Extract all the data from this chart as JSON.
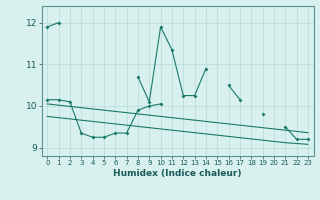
{
  "xlabel": "Humidex (Indice chaleur)",
  "background_color": "#d8f0ee",
  "grid_color": "#b8dbd8",
  "line_color": "#1a7a6a",
  "xlim": [
    -0.5,
    23.5
  ],
  "ylim": [
    8.8,
    12.4
  ],
  "yticks": [
    9,
    10,
    11,
    12
  ],
  "xticks": [
    0,
    1,
    2,
    3,
    4,
    5,
    6,
    7,
    8,
    9,
    10,
    11,
    12,
    13,
    14,
    15,
    16,
    17,
    18,
    19,
    20,
    21,
    22,
    23
  ],
  "series1_y": [
    11.9,
    12.0,
    null,
    null,
    null,
    null,
    null,
    null,
    10.7,
    10.1,
    11.9,
    11.35,
    10.25,
    10.25,
    10.9,
    null,
    10.5,
    10.15,
    null,
    9.8,
    null,
    9.5,
    9.2,
    9.2
  ],
  "series2_y": [
    10.15,
    10.15,
    10.1,
    9.35,
    9.25,
    9.25,
    9.35,
    9.35,
    9.9,
    10.0,
    10.05,
    null,
    null,
    null,
    null,
    null,
    null,
    null,
    null,
    null,
    null,
    null,
    null,
    null
  ],
  "series3_y": [
    10.05,
    10.02,
    9.99,
    9.96,
    9.93,
    9.9,
    9.87,
    9.84,
    9.81,
    9.78,
    9.75,
    9.72,
    9.69,
    9.66,
    9.63,
    9.6,
    9.57,
    9.54,
    9.51,
    9.48,
    9.45,
    9.42,
    9.39,
    9.36
  ],
  "series4_y": [
    9.75,
    9.72,
    9.69,
    9.66,
    9.63,
    9.6,
    9.57,
    9.54,
    9.51,
    9.48,
    9.45,
    9.42,
    9.39,
    9.36,
    9.33,
    9.3,
    9.27,
    9.24,
    9.21,
    9.18,
    9.15,
    9.12,
    9.1,
    9.08
  ]
}
